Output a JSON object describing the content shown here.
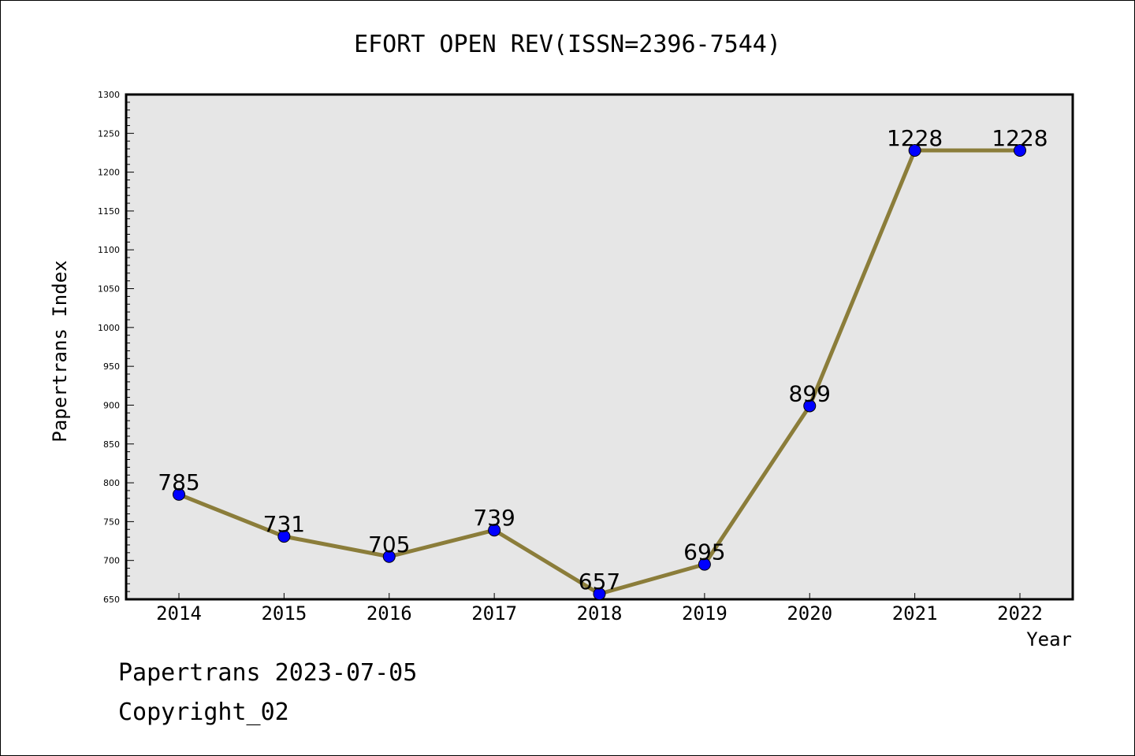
{
  "title": "EFORT OPEN REV(ISSN=2396-7544)",
  "footer": {
    "line1": "Papertrans 2023-07-05",
    "line2": "Copyright_02"
  },
  "colors": {
    "plot_background": "#e6e6e6",
    "line": "#8b7d3a",
    "marker": "#0000ff",
    "frame": "#000000"
  },
  "chart_data": {
    "type": "line",
    "title": "EFORT OPEN REV(ISSN=2396-7544)",
    "xlabel": "Year",
    "ylabel": "Papertrans Index",
    "categories": [
      "2014",
      "2015",
      "2016",
      "2017",
      "2018",
      "2019",
      "2020",
      "2021",
      "2022"
    ],
    "series": [
      {
        "values": [
          785,
          731,
          705,
          739,
          657,
          695,
          899,
          1228,
          1228
        ]
      }
    ],
    "data_labels": [
      "785",
      "731",
      "705",
      "739",
      "657",
      "695",
      "899",
      "1228",
      "1228"
    ],
    "ylim": [
      650,
      1300
    ],
    "yticks": [
      650,
      700,
      750,
      800,
      850,
      900,
      950,
      1000,
      1050,
      1100,
      1150,
      1200,
      1250,
      1300
    ],
    "ytick_labels": [
      "650",
      "700",
      "750",
      "800",
      "850",
      "900",
      "950",
      "1000",
      "1050",
      "1100",
      "1150",
      "1200",
      "1250",
      "1300"
    ],
    "grid": false,
    "legend": "none"
  }
}
